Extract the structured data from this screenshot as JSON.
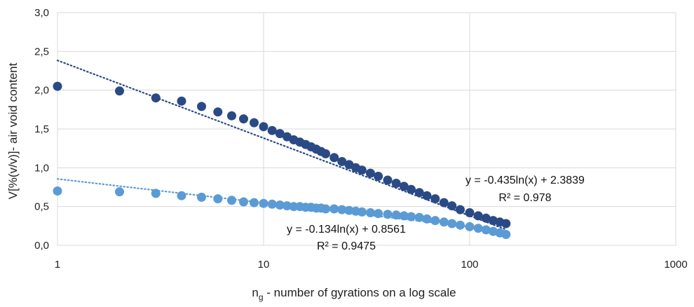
{
  "chart_data": {
    "type": "scatter",
    "xscale": "log",
    "xlim": [
      1,
      1000
    ],
    "ylim": [
      0.0,
      3.0
    ],
    "xticks": [
      "1",
      "10",
      "100",
      "1000"
    ],
    "yticks": [
      "0,0",
      "0,5",
      "1,0",
      "1,5",
      "2,0",
      "2,5",
      "3,0"
    ],
    "ylabel": "V[%(v/v)]- air void content",
    "xlabel": {
      "main": "n",
      "sub": "g",
      "rest": " - number of gyrations on a log scale"
    },
    "grid": true,
    "series": [
      {
        "color": "#2a4a85",
        "trendline": {
          "type": "log",
          "a": -0.435,
          "b": 2.3839,
          "style": "dotted",
          "x_range": [
            1,
            150
          ]
        },
        "equation": "y = -0.435ln(x) + 2.3839",
        "r2": "R² = 0.978",
        "points": [
          [
            1,
            2.05
          ],
          [
            2,
            1.99
          ],
          [
            3,
            1.9
          ],
          [
            4,
            1.86
          ],
          [
            5,
            1.79
          ],
          [
            6,
            1.72
          ],
          [
            7,
            1.67
          ],
          [
            8,
            1.63
          ],
          [
            9,
            1.58
          ],
          [
            10,
            1.53
          ],
          [
            11,
            1.48
          ],
          [
            12,
            1.44
          ],
          [
            13,
            1.4
          ],
          [
            14,
            1.36
          ],
          [
            15,
            1.33
          ],
          [
            16,
            1.3
          ],
          [
            17,
            1.27
          ],
          [
            18,
            1.24
          ],
          [
            19,
            1.21
          ],
          [
            20,
            1.18
          ],
          [
            22,
            1.13
          ],
          [
            24,
            1.08
          ],
          [
            26,
            1.04
          ],
          [
            28,
            1.0
          ],
          [
            30,
            0.97
          ],
          [
            33,
            0.93
          ],
          [
            36,
            0.89
          ],
          [
            40,
            0.84
          ],
          [
            44,
            0.8
          ],
          [
            48,
            0.76
          ],
          [
            52,
            0.72
          ],
          [
            57,
            0.68
          ],
          [
            62,
            0.64
          ],
          [
            68,
            0.6
          ],
          [
            75,
            0.55
          ],
          [
            82,
            0.51
          ],
          [
            90,
            0.46
          ],
          [
            100,
            0.42
          ],
          [
            110,
            0.38
          ],
          [
            120,
            0.35
          ],
          [
            130,
            0.32
          ],
          [
            140,
            0.3
          ],
          [
            150,
            0.28
          ]
        ]
      },
      {
        "color": "#5b9bd5",
        "trendline": {
          "type": "log",
          "a": -0.134,
          "b": 0.8561,
          "style": "dotted",
          "x_range": [
            1,
            150
          ]
        },
        "equation": "y = -0.134ln(x) + 0.8561",
        "r2": "R² = 0.9475",
        "points": [
          [
            1,
            0.7
          ],
          [
            2,
            0.69
          ],
          [
            3,
            0.67
          ],
          [
            4,
            0.64
          ],
          [
            5,
            0.62
          ],
          [
            6,
            0.6
          ],
          [
            7,
            0.58
          ],
          [
            8,
            0.56
          ],
          [
            9,
            0.55
          ],
          [
            10,
            0.54
          ],
          [
            11,
            0.53
          ],
          [
            12,
            0.52
          ],
          [
            13,
            0.51
          ],
          [
            14,
            0.5
          ],
          [
            15,
            0.5
          ],
          [
            16,
            0.49
          ],
          [
            17,
            0.49
          ],
          [
            18,
            0.48
          ],
          [
            19,
            0.48
          ],
          [
            20,
            0.47
          ],
          [
            22,
            0.47
          ],
          [
            24,
            0.46
          ],
          [
            26,
            0.45
          ],
          [
            28,
            0.44
          ],
          [
            30,
            0.43
          ],
          [
            33,
            0.42
          ],
          [
            36,
            0.41
          ],
          [
            40,
            0.4
          ],
          [
            44,
            0.39
          ],
          [
            48,
            0.38
          ],
          [
            52,
            0.37
          ],
          [
            57,
            0.36
          ],
          [
            62,
            0.34
          ],
          [
            68,
            0.32
          ],
          [
            75,
            0.3
          ],
          [
            82,
            0.28
          ],
          [
            90,
            0.26
          ],
          [
            100,
            0.24
          ],
          [
            110,
            0.22
          ],
          [
            120,
            0.2
          ],
          [
            130,
            0.18
          ],
          [
            140,
            0.16
          ],
          [
            150,
            0.14
          ]
        ]
      }
    ]
  }
}
